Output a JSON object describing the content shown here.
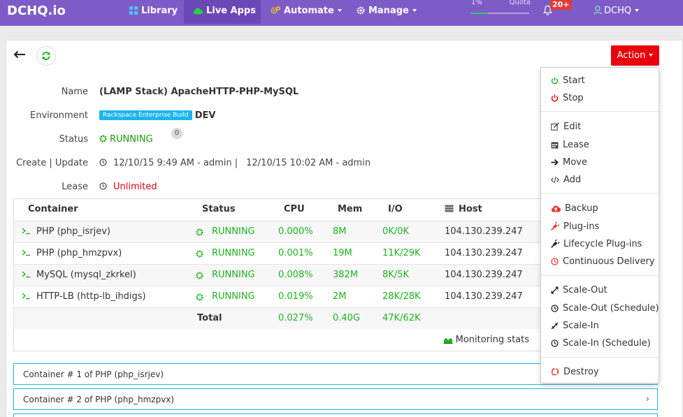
{
  "navbar": {
    "brand": "DCHQ.io",
    "items": [
      {
        "label": "Library",
        "icon": "grid-icon"
      },
      {
        "label": "Live Apps",
        "icon": "cloud-icon",
        "active": true
      },
      {
        "label": "Automate",
        "icon": "gears-icon",
        "dropdown": true
      },
      {
        "label": "Manage",
        "icon": "gear-icon",
        "dropdown": true
      }
    ],
    "quota": {
      "percent_label": "1%",
      "label": "Quota",
      "fraction": 0.01
    },
    "notifications_badge": "20+",
    "user": "DCHQ",
    "colors": {
      "bar": "#7e5cc7",
      "active": "#6b48b8",
      "badge": "#e53935"
    }
  },
  "toolbar": {
    "action_label": "Action",
    "action_color": "#e8000d"
  },
  "details": {
    "name_label": "Name",
    "name_value": "(LAMP Stack) ApacheHTTP-PHP-MySQL",
    "env_label": "Environment",
    "env_badge": "Rackspace Enterprise Build",
    "env_value": "DEV",
    "status_label": "Status",
    "status_value": "RUNNING",
    "status_count": "0",
    "create_label": "Create | Update",
    "create_value": "12/10/15 9:49 AM - admin |",
    "update_value": "12/10/15 10:02 AM - admin",
    "lease_label": "Lease",
    "lease_value": "Unlimited"
  },
  "table": {
    "headers": {
      "container": "Container",
      "status": "Status",
      "cpu": "CPU",
      "mem": "Mem",
      "io": "I/O",
      "host": "Host"
    },
    "rows": [
      {
        "container": "PHP (php_isrjev)",
        "status": "RUNNING",
        "cpu": "0.000%",
        "mem": "8M",
        "io": "0K/0K",
        "host": "104.130.239.247"
      },
      {
        "container": "PHP (php_hmzpvx)",
        "status": "RUNNING",
        "cpu": "0.001%",
        "mem": "19M",
        "io": "11K/29K",
        "host": "104.130.239.247"
      },
      {
        "container": "MySQL (mysql_zkrkel)",
        "status": "RUNNING",
        "cpu": "0.008%",
        "mem": "382M",
        "io": "8K/5K",
        "host": "104.130.239.247"
      },
      {
        "container": "HTTP-LB (http-lb_ihdigs)",
        "status": "RUNNING",
        "cpu": "0.019%",
        "mem": "2M",
        "io": "28K/28K",
        "host": "104.130.239.247"
      }
    ],
    "total": {
      "label": "Total",
      "cpu": "0.027%",
      "mem": "0.40G",
      "io": "47K/62K"
    },
    "monitoring_label": "Monitoring stats"
  },
  "accordion": [
    {
      "label": "Container # 1 of PHP (php_isrjev)"
    },
    {
      "label": "Container # 2 of PHP (php_hmzpvx)"
    }
  ],
  "action_menu": {
    "start": "Start",
    "stop": "Stop",
    "edit": "Edit",
    "lease": "Lease",
    "move": "Move",
    "add": "Add",
    "backup": "Backup",
    "plugins": "Plug-ins",
    "lifecycle": "Lifecycle Plug-ins",
    "cd": "Continuous Delivery",
    "scale_out": "Scale-Out",
    "scale_out_schedule": "Scale-Out (Schedule)",
    "scale_in": "Scale-In",
    "scale_in_schedule": "Scale-In (Schedule)",
    "destroy": "Destroy"
  }
}
